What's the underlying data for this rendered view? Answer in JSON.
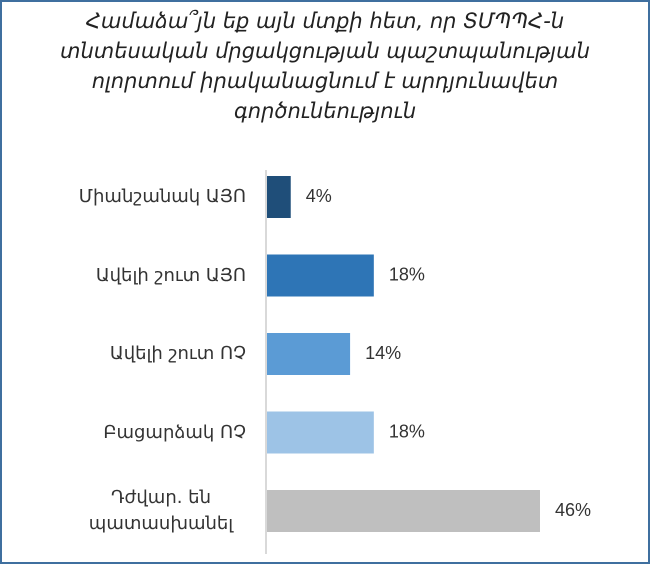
{
  "chart_data": {
    "type": "bar",
    "orientation": "horizontal",
    "title": "Համաձա՞յն եք այն մտքի հետ, որ ՏՄՊՊՀ-ն տնտեսական մրցակցության պաշտպանության ոլորտում իրականացնում է արդյունավետ գործունեություն",
    "categories": [
      "Միանշանակ ԱՅՈ",
      "Ավելի շուտ ԱՅՈ",
      "Ավելի շուտ ՈՉ",
      "Բացարձակ ՈՉ",
      "Դժվար. են պատասխանել"
    ],
    "values": [
      4,
      18,
      14,
      18,
      46
    ],
    "value_labels": [
      "4%",
      "18%",
      "14%",
      "18%",
      "46%"
    ],
    "colors": [
      "#1f4e79",
      "#2e75b6",
      "#5b9bd5",
      "#9dc3e6",
      "#bfbfbf"
    ]
  }
}
